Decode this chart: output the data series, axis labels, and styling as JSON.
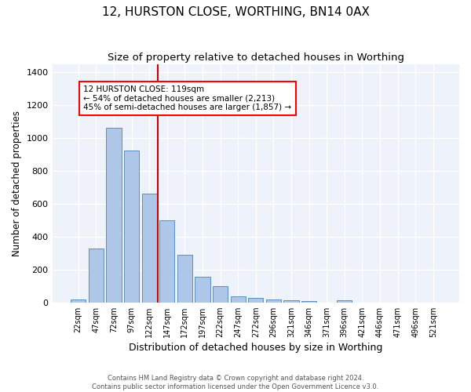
{
  "title": "12, HURSTON CLOSE, WORTHING, BN14 0AX",
  "subtitle": "Size of property relative to detached houses in Worthing",
  "xlabel": "Distribution of detached houses by size in Worthing",
  "ylabel": "Number of detached properties",
  "categories": [
    "22sqm",
    "47sqm",
    "72sqm",
    "97sqm",
    "122sqm",
    "147sqm",
    "172sqm",
    "197sqm",
    "222sqm",
    "247sqm",
    "272sqm",
    "296sqm",
    "321sqm",
    "346sqm",
    "371sqm",
    "396sqm",
    "421sqm",
    "446sqm",
    "471sqm",
    "496sqm",
    "521sqm"
  ],
  "values": [
    20,
    330,
    1060,
    925,
    660,
    500,
    290,
    155,
    100,
    38,
    25,
    20,
    15,
    10,
    0,
    12,
    0,
    0,
    0,
    0,
    0
  ],
  "bar_color": "#aec6e8",
  "bar_edge_color": "#5a8fc2",
  "bg_color": "#eef2fb",
  "grid_color": "#ffffff",
  "annotation_line1": "12 HURSTON CLOSE: 119sqm",
  "annotation_line2": "← 54% of detached houses are smaller (2,213)",
  "annotation_line3": "45% of semi-detached houses are larger (1,857) →",
  "red_line_x": 4.5,
  "vline_color": "#cc0000",
  "footer_text": "Contains HM Land Registry data © Crown copyright and database right 2024.\nContains public sector information licensed under the Open Government Licence v3.0.",
  "ylim": [
    0,
    1450
  ],
  "title_fontsize": 11,
  "subtitle_fontsize": 9.5,
  "ylabel_fontsize": 8.5,
  "xlabel_fontsize": 9,
  "tick_fontsize": 7,
  "annotation_fontsize": 7.5
}
